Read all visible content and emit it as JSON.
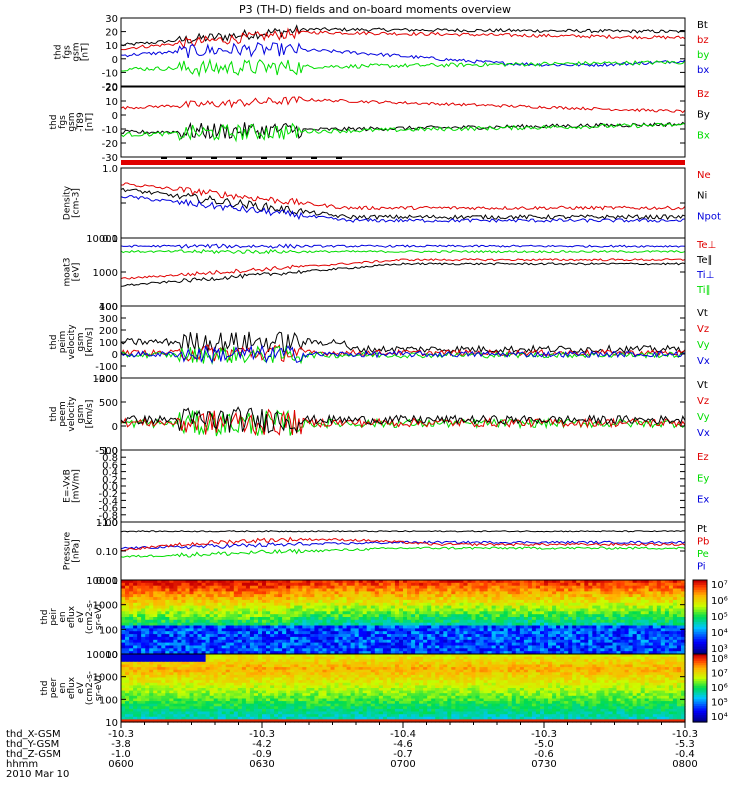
{
  "title": "P3 (TH-D) fields and on-board moments overview",
  "colors": {
    "black": "#000000",
    "red": "#e00000",
    "green": "#00dd00",
    "blue": "#0000dd",
    "frame": "#000000"
  },
  "time_axis": {
    "labels": [
      "0600",
      "0630",
      "0700",
      "0730",
      "0800"
    ],
    "rows": [
      {
        "name": "thd_X-GSM",
        "values": [
          "-10.3",
          "-10.3",
          "-10.4",
          "-10.3",
          "-10.3"
        ]
      },
      {
        "name": "thd_Y-GSM",
        "values": [
          "-3.8",
          "-4.2",
          "-4.6",
          "-5.0",
          "-5.3"
        ]
      },
      {
        "name": "thd_Z-GSM",
        "values": [
          "-1.0",
          "-0.9",
          "-0.7",
          "-0.6",
          "-0.4"
        ]
      },
      {
        "name": "hhmm",
        "values": [
          "0600",
          "0630",
          "0700",
          "0730",
          "0800"
        ]
      }
    ],
    "date": "2010 Mar 10"
  },
  "chart_data": [
    {
      "type": "line",
      "ylabel": [
        "thd",
        "fgs",
        "gsm",
        "[nT]"
      ],
      "ylim": [
        -20,
        30
      ],
      "yticks": [
        "30",
        "20",
        "10",
        "0",
        "-10",
        "-20"
      ],
      "series": [
        {
          "name": "Bt",
          "color": "black"
        },
        {
          "name": "bz",
          "color": "red"
        },
        {
          "name": "by",
          "color": "green"
        },
        {
          "name": "bx",
          "color": "blue"
        }
      ]
    },
    {
      "type": "line",
      "ylabel": [
        "thd",
        "fgs",
        "gsm",
        "-T89",
        "[nT]"
      ],
      "ylim": [
        -35,
        20
      ],
      "yticks": [
        "20",
        "10",
        "0",
        "-10",
        "-20",
        "-30"
      ],
      "series": [
        {
          "name": "Bz",
          "color": "red"
        },
        {
          "name": "By",
          "color": "black"
        },
        {
          "name": "Bx",
          "color": "green"
        }
      ]
    },
    {
      "type": "line",
      "ylabel": [
        "Density",
        "[cm-3]"
      ],
      "ylim": [
        0.1,
        1.0
      ],
      "log": true,
      "yticks": [
        "1.0",
        "",
        "0.1"
      ],
      "series": [
        {
          "name": "Ne",
          "color": "red"
        },
        {
          "name": "Ni",
          "color": "black"
        },
        {
          "name": "Npot",
          "color": "blue"
        }
      ]
    },
    {
      "type": "line",
      "ylabel": [
        "moat3",
        "[eV]"
      ],
      "ylim": [
        100,
        10000
      ],
      "log": true,
      "yticks": [
        "10000",
        "1000",
        "100"
      ],
      "series": [
        {
          "name": "Te⊥",
          "color": "red"
        },
        {
          "name": "Te∥",
          "color": "black"
        },
        {
          "name": "Ti⊥",
          "color": "blue"
        },
        {
          "name": "Ti∥",
          "color": "green"
        }
      ]
    },
    {
      "type": "line",
      "ylabel": [
        "thd",
        "peim",
        "velocity",
        "gsm",
        "[km/s]"
      ],
      "ylim": [
        -200,
        400
      ],
      "yticks": [
        "400",
        "300",
        "200",
        "100",
        "0",
        "-100",
        "-200"
      ],
      "series": [
        {
          "name": "Vt",
          "color": "black"
        },
        {
          "name": "Vz",
          "color": "red"
        },
        {
          "name": "Vy",
          "color": "green"
        },
        {
          "name": "Vx",
          "color": "blue"
        }
      ]
    },
    {
      "type": "line",
      "ylabel": [
        "thd",
        "peem",
        "velocity",
        "gsm",
        "[km/s]"
      ],
      "ylim": [
        -800,
        1500
      ],
      "yticks": [
        "1000",
        "500",
        "0",
        "-500"
      ],
      "series": [
        {
          "name": "Vt",
          "color": "black"
        },
        {
          "name": "Vz",
          "color": "red"
        },
        {
          "name": "Vy",
          "color": "green"
        },
        {
          "name": "Vx",
          "color": "blue"
        }
      ]
    },
    {
      "type": "line",
      "ylabel": [
        "E=-VxB",
        "[mV/m]"
      ],
      "ylim": [
        -1.0,
        1.0
      ],
      "yticks": [
        "1.0",
        "0.8",
        "0.6",
        "0.4",
        "0.2",
        "0.0",
        "-0.2",
        "-0.4",
        "-0.6",
        "-0.8",
        "-1.0"
      ],
      "series": [
        {
          "name": "Ez",
          "color": "red"
        },
        {
          "name": "Ey",
          "color": "green"
        },
        {
          "name": "Ex",
          "color": "blue"
        }
      ]
    },
    {
      "type": "line",
      "ylabel": [
        "Pressure",
        "[nPa]"
      ],
      "ylim": [
        0.01,
        1.0
      ],
      "log": true,
      "yticks": [
        "1.00",
        "0.10",
        "0.01"
      ],
      "series": [
        {
          "name": "Pt",
          "color": "black"
        },
        {
          "name": "Pb",
          "color": "red"
        },
        {
          "name": "Pe",
          "color": "green"
        },
        {
          "name": "Pi",
          "color": "blue"
        }
      ]
    },
    {
      "type": "heatmap",
      "ylabel": [
        "thd",
        "peir",
        "en",
        "eflux",
        "eV",
        "(cm2-s-",
        "sr-eV)"
      ],
      "ylim": [
        10,
        10000
      ],
      "log": true,
      "yticks": [
        "10000",
        "1000",
        "100",
        "10"
      ],
      "colorbar": [
        "10⁷",
        "10⁶",
        "10⁵",
        "10⁴",
        "10³"
      ]
    },
    {
      "type": "heatmap",
      "ylabel": [
        "thd",
        "peer",
        "en",
        "eflux",
        "eV",
        "(cm2-s-",
        "sr-eV)"
      ],
      "ylim": [
        10,
        10000
      ],
      "log": true,
      "yticks": [
        "10000",
        "1000",
        "100",
        "10"
      ],
      "colorbar": [
        "10⁸",
        "10⁷",
        "10⁶",
        "10⁵",
        "10⁴"
      ]
    }
  ]
}
